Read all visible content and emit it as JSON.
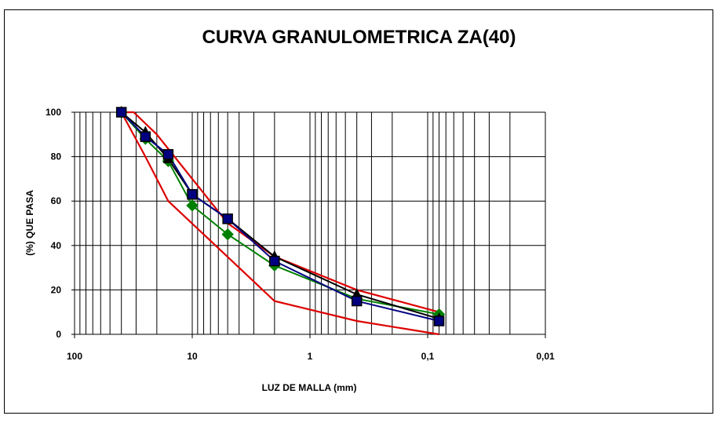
{
  "chart_data": {
    "type": "line",
    "title": "CURVA GRANULOMETRICA ZA(40)",
    "xlabel": "LUZ DE MALLA (mm)",
    "ylabel": "(%) QUE PASA",
    "x_scale": "log-reversed",
    "xlim": [
      100,
      0.01
    ],
    "ylim": [
      0,
      100
    ],
    "x_ticks": [
      {
        "value": 100,
        "label": "100"
      },
      {
        "value": 10,
        "label": "10"
      },
      {
        "value": 1,
        "label": "1"
      },
      {
        "value": 0.1,
        "label": "0,1"
      },
      {
        "value": 0.01,
        "label": "0,01"
      }
    ],
    "y_ticks": [
      {
        "value": 0,
        "label": "0"
      },
      {
        "value": 20,
        "label": "20"
      },
      {
        "value": 40,
        "label": "40"
      },
      {
        "value": 60,
        "label": "60"
      },
      {
        "value": 80,
        "label": "80"
      },
      {
        "value": 100,
        "label": "100"
      }
    ],
    "grid": true,
    "envelope": {
      "color": "#dd0000",
      "upper": [
        [
          40,
          100
        ],
        [
          31.5,
          100
        ],
        [
          20,
          90
        ],
        [
          10,
          70
        ],
        [
          5,
          50
        ],
        [
          2,
          35
        ],
        [
          0.4,
          20
        ],
        [
          0.08,
          10
        ]
      ],
      "lower": [
        [
          40,
          100
        ],
        [
          25,
          80
        ],
        [
          16,
          60
        ],
        [
          8,
          45
        ],
        [
          4,
          30
        ],
        [
          2,
          15
        ],
        [
          0.4,
          6
        ],
        [
          0.08,
          0
        ]
      ]
    },
    "series": [
      {
        "color": "#008000",
        "marker": "diamond",
        "points": [
          [
            40,
            100
          ],
          [
            25,
            88
          ],
          [
            16,
            78
          ],
          [
            10,
            58
          ],
          [
            5,
            45
          ],
          [
            2,
            31
          ],
          [
            0.4,
            16
          ],
          [
            0.08,
            9
          ]
        ]
      },
      {
        "color": "#000000",
        "marker": "triangle",
        "points": [
          [
            40,
            100
          ],
          [
            25,
            91
          ],
          [
            16,
            79
          ],
          [
            10,
            63
          ],
          [
            5,
            52
          ],
          [
            2,
            35
          ],
          [
            0.4,
            18
          ],
          [
            0.08,
            7
          ]
        ]
      },
      {
        "color": "#000080",
        "marker": "square",
        "points": [
          [
            40,
            100
          ],
          [
            25,
            89
          ],
          [
            16,
            81
          ],
          [
            10,
            63
          ],
          [
            5,
            52
          ],
          [
            2,
            33
          ],
          [
            0.4,
            15
          ],
          [
            0.08,
            6
          ]
        ]
      }
    ]
  }
}
